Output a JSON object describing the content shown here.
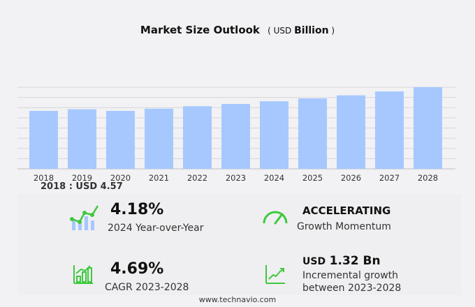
{
  "chart_data": {
    "type": "bar",
    "title": "Market Size Outlook",
    "unit_prefix": "USD",
    "unit": "Billion",
    "categories": [
      "2018",
      "2019",
      "2020",
      "2021",
      "2022",
      "2023",
      "2024",
      "2025",
      "2026",
      "2027",
      "2028"
    ],
    "values": [
      4.57,
      4.7,
      4.57,
      4.75,
      4.94,
      5.12,
      5.33,
      5.56,
      5.8,
      6.11,
      6.44
    ],
    "ylim": [
      0,
      6.44
    ],
    "grid": true,
    "bar_color": "#a6c8ff"
  },
  "base_label": "2018 : USD  4.57",
  "kpis": {
    "yoy": {
      "value": "4.18%",
      "label": "2024 Year-over-Year"
    },
    "momentum": {
      "value": "ACCELERATING",
      "label": "Growth Momentum"
    },
    "cagr": {
      "value": "4.69%",
      "label": "CAGR 2023-2028"
    },
    "incremental": {
      "prefix": "USD",
      "value": "1.32 Bn",
      "label1": "Incremental growth",
      "label2": "between 2023-2028"
    }
  },
  "accent_color": "#3ec93e",
  "footer": "www.technavio.com"
}
